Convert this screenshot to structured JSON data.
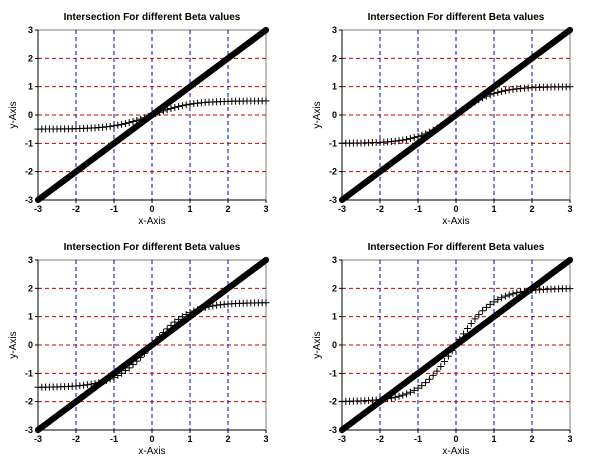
{
  "chart_data": [
    {
      "type": "scatter",
      "title": "Intersection For different Beta values",
      "xlabel": "x-Axis",
      "ylabel": "y-Axis",
      "xlim": [
        -3,
        3
      ],
      "ylim": [
        -3,
        3
      ],
      "xticks": [
        "-3",
        "-2",
        "-1",
        "0",
        "1",
        "2",
        "3"
      ],
      "yticks": [
        "-3",
        "-2",
        "-1",
        "0",
        "1",
        "2",
        "3"
      ],
      "grid": true,
      "series": [
        {
          "marker": "circle",
          "x": [
            -3,
            3
          ],
          "y": [
            -3,
            3
          ],
          "relation": "y = x"
        },
        {
          "marker": "plus",
          "x": [
            -3,
            3
          ],
          "y": [
            -0.5,
            0.5
          ],
          "relation": "y = 0.5 * tanh(x)"
        }
      ]
    },
    {
      "type": "scatter",
      "title": "Intersection For different Beta values",
      "xlabel": "x-Axis",
      "ylabel": "y-Axis",
      "xlim": [
        -3,
        3
      ],
      "ylim": [
        -3,
        3
      ],
      "xticks": [
        "-3",
        "-2",
        "-1",
        "0",
        "1",
        "2",
        "3"
      ],
      "yticks": [
        "-3",
        "-2",
        "-1",
        "0",
        "1",
        "2",
        "3"
      ],
      "grid": true,
      "series": [
        {
          "marker": "circle",
          "x": [
            -3,
            3
          ],
          "y": [
            -3,
            3
          ],
          "relation": "y = x"
        },
        {
          "marker": "plus",
          "x": [
            -3,
            3
          ],
          "y": [
            -1,
            1
          ],
          "relation": "y = 1 * tanh(x)"
        }
      ]
    },
    {
      "type": "scatter",
      "title": "Intersection For different Beta values",
      "xlabel": "x-Axis",
      "ylabel": "y-Axis",
      "xlim": [
        -3,
        3
      ],
      "ylim": [
        -3,
        3
      ],
      "xticks": [
        "-3",
        "-2",
        "-1",
        "0",
        "1",
        "2",
        "3"
      ],
      "yticks": [
        "-3",
        "-2",
        "-1",
        "0",
        "1",
        "2",
        "3"
      ],
      "grid": true,
      "series": [
        {
          "marker": "circle",
          "x": [
            -3,
            3
          ],
          "y": [
            -3,
            3
          ],
          "relation": "y = x"
        },
        {
          "marker": "plus",
          "x": [
            -3,
            3
          ],
          "y": [
            -1.5,
            1.5
          ],
          "relation": "y = 1.5 * tanh(x)"
        }
      ]
    },
    {
      "type": "scatter",
      "title": "Intersection For different Beta values",
      "xlabel": "x-Axis",
      "ylabel": "y-Axis",
      "xlim": [
        -3,
        3
      ],
      "ylim": [
        -3,
        3
      ],
      "xticks": [
        "-3",
        "-2",
        "-1",
        "0",
        "1",
        "2",
        "3"
      ],
      "yticks": [
        "-3",
        "-2",
        "-1",
        "0",
        "1",
        "2",
        "3"
      ],
      "grid": true,
      "series": [
        {
          "marker": "circle",
          "x": [
            -3,
            3
          ],
          "y": [
            -3,
            3
          ],
          "relation": "y = x"
        },
        {
          "marker": "plus",
          "x": [
            -3,
            3
          ],
          "y": [
            -2,
            2
          ],
          "relation": "y = 2 * tanh(x)"
        }
      ]
    }
  ],
  "colors": {
    "background": "#ffffff",
    "axis": "#000000",
    "grid_vertical": "#0000cc",
    "grid_horizontal": "#cc0000",
    "marker": "#000000"
  }
}
